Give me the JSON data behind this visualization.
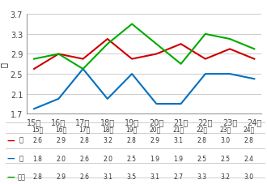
{
  "years": [
    "15年",
    "16年",
    "17年",
    "18年",
    "19年",
    "20年",
    "21年",
    "22年",
    "23年",
    "24年"
  ],
  "bun": [
    2.6,
    2.9,
    2.8,
    3.2,
    2.8,
    2.9,
    3.1,
    2.8,
    3.0,
    2.8
  ],
  "hou": [
    1.8,
    2.0,
    2.6,
    2.0,
    2.5,
    1.9,
    1.9,
    2.5,
    2.5,
    2.4
  ],
  "keizai": [
    2.8,
    2.9,
    2.6,
    3.1,
    3.5,
    3.1,
    2.7,
    3.3,
    3.2,
    3.0
  ],
  "bun_color": "#cc0000",
  "hou_color": "#0070c0",
  "keizai_color": "#00aa00",
  "ylim": [
    1.7,
    3.7
  ],
  "yticks": [
    1.7,
    2.1,
    2.5,
    2.9,
    3.3,
    3.7
  ],
  "ylabel": "倍",
  "legend_labels": [
    "文",
    "法",
    "経済"
  ],
  "bg_color": "#ffffff",
  "grid_color": "#cccccc"
}
